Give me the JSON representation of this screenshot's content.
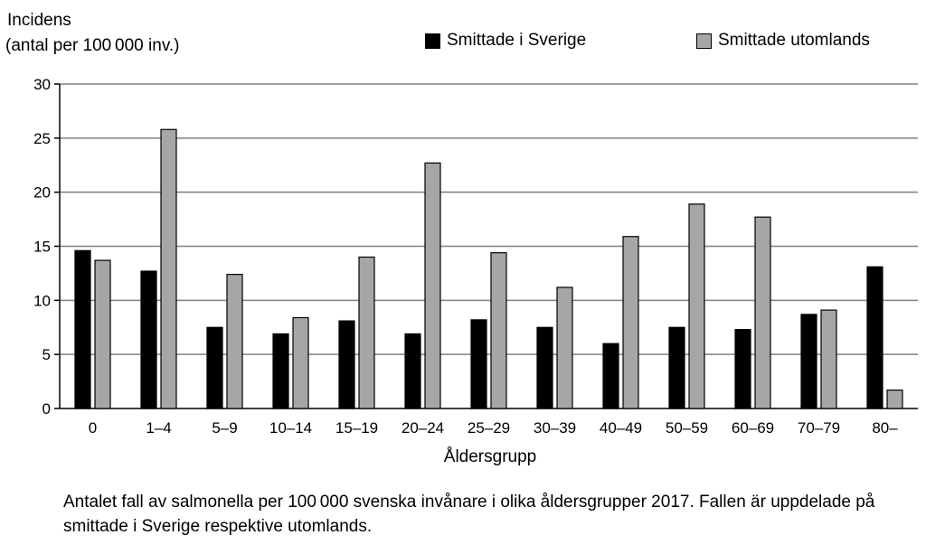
{
  "chart_data": {
    "type": "bar",
    "ylabel_line1": "Incidens",
    "ylabel_line2": "(antal per 100 000 inv.)",
    "xlabel": "Åldersgrupp",
    "categories": [
      "0",
      "1–4",
      "5–9",
      "10–14",
      "15–19",
      "20–24",
      "25–29",
      "30–39",
      "40–49",
      "50–59",
      "60–69",
      "70–79",
      "80–"
    ],
    "series": [
      {
        "name": "Smittade i Sverige",
        "color": "#000000",
        "values": [
          14.6,
          12.7,
          7.5,
          6.9,
          8.1,
          6.9,
          8.2,
          7.5,
          6.0,
          7.5,
          7.3,
          8.7,
          13.1
        ]
      },
      {
        "name": "Smittade utomlands",
        "color": "#a6a6a6",
        "values": [
          13.7,
          25.8,
          12.4,
          8.4,
          14.0,
          22.7,
          14.4,
          11.2,
          15.9,
          18.9,
          17.7,
          9.1,
          1.7
        ]
      }
    ],
    "yticks": [
      0,
      5,
      10,
      15,
      20,
      25,
      30
    ],
    "ylim": [
      0,
      30
    ],
    "grid": true,
    "legend_position": "top-right"
  },
  "caption": "Antalet fall av salmonella per 100 000 svenska invånare i olika åldersgrupper 2017. Fallen är uppdelade på smittade i Sverige respektive utomlands."
}
